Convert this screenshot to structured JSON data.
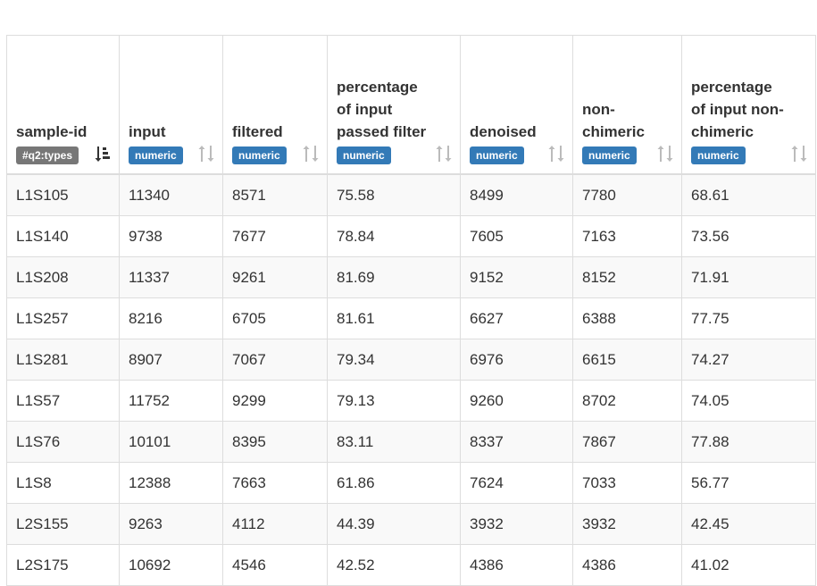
{
  "table": {
    "columns": [
      {
        "label": "sample-id",
        "badge": "#q2:types",
        "badge_kind": "types",
        "sort_icon": "sort-amount-asc-icon",
        "sort_active": true
      },
      {
        "label": "input",
        "badge": "numeric",
        "badge_kind": "numeric",
        "sort_icon": "sort-icon",
        "sort_active": false
      },
      {
        "label": "filtered",
        "badge": "numeric",
        "badge_kind": "numeric",
        "sort_icon": "sort-icon",
        "sort_active": false
      },
      {
        "label": "percentage of input passed filter",
        "badge": "numeric",
        "badge_kind": "numeric",
        "sort_icon": "sort-icon",
        "sort_active": false
      },
      {
        "label": "denoised",
        "badge": "numeric",
        "badge_kind": "numeric",
        "sort_icon": "sort-icon",
        "sort_active": false
      },
      {
        "label": "non-chimeric",
        "badge": "numeric",
        "badge_kind": "numeric",
        "sort_icon": "sort-icon",
        "sort_active": false
      },
      {
        "label": "percentage of input non-chimeric",
        "badge": "numeric",
        "badge_kind": "numeric",
        "sort_icon": "sort-icon",
        "sort_active": false
      }
    ],
    "rows": [
      [
        "L1S105",
        "11340",
        "8571",
        "75.58",
        "8499",
        "7780",
        "68.61"
      ],
      [
        "L1S140",
        "9738",
        "7677",
        "78.84",
        "7605",
        "7163",
        "73.56"
      ],
      [
        "L1S208",
        "11337",
        "9261",
        "81.69",
        "9152",
        "8152",
        "71.91"
      ],
      [
        "L1S257",
        "8216",
        "6705",
        "81.61",
        "6627",
        "6388",
        "77.75"
      ],
      [
        "L1S281",
        "8907",
        "7067",
        "79.34",
        "6976",
        "6615",
        "74.27"
      ],
      [
        "L1S57",
        "11752",
        "9299",
        "79.13",
        "9260",
        "8702",
        "74.05"
      ],
      [
        "L1S76",
        "10101",
        "8395",
        "83.11",
        "8337",
        "7867",
        "77.88"
      ],
      [
        "L1S8",
        "12388",
        "7663",
        "61.86",
        "7624",
        "7033",
        "56.77"
      ],
      [
        "L2S155",
        "9263",
        "4112",
        "44.39",
        "3932",
        "3932",
        "42.45"
      ],
      [
        "L2S175",
        "10692",
        "4546",
        "42.52",
        "4386",
        "4386",
        "41.02"
      ]
    ]
  },
  "colors": {
    "numeric_badge": "#337ab7",
    "types_badge": "#777777",
    "stripe": "#f9f9f9",
    "border": "#dddddd",
    "text": "#333333"
  }
}
